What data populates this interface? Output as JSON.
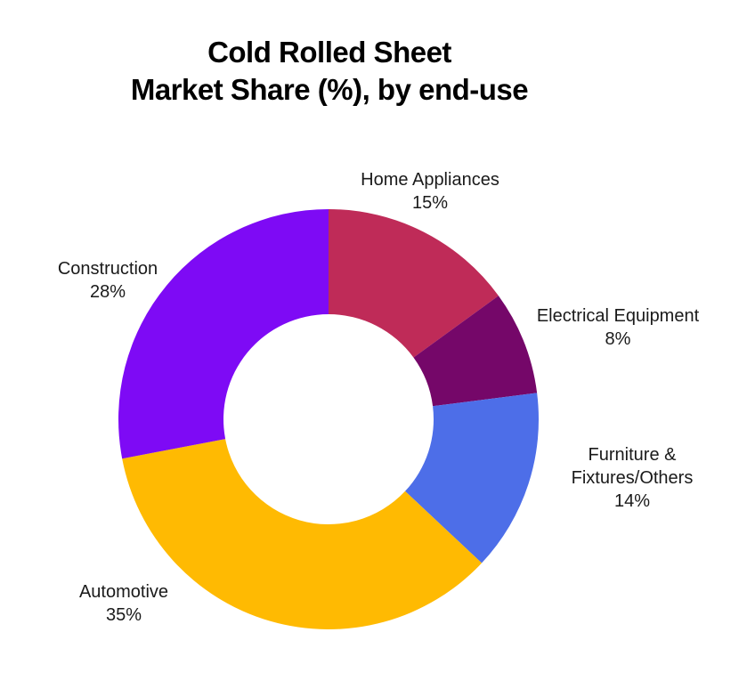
{
  "title": "Cold Rolled Sheet\nMarket Share (%), by end-use",
  "chart_data": {
    "type": "pie",
    "subtype": "donut",
    "title": "Cold Rolled Sheet Market Share (%), by end-use",
    "categories": [
      "Home Appliances",
      "Electrical Equipment",
      "Furniture & Fixtures/Others",
      "Automotive",
      "Construction"
    ],
    "values": [
      15,
      8,
      14,
      35,
      28
    ],
    "value_labels": [
      "15%",
      "8%",
      "14%",
      "35%",
      "28%"
    ],
    "unit": "%",
    "colors": [
      "#BF2B58",
      "#750769",
      "#4D6EE8",
      "#FFBA02",
      "#7E0AF5"
    ],
    "start_angle_deg": 0,
    "direction": "clockwise",
    "inner_radius_ratio": 0.5,
    "legend": "none",
    "label_position": "outside",
    "background": "#FFFFFF",
    "text_color": "#1A1A1A"
  }
}
